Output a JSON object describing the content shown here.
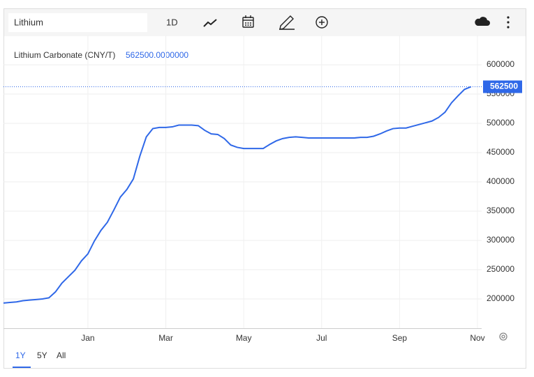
{
  "toolbar": {
    "search": "Lithium",
    "interval": "1D",
    "ranges": [
      "1Y",
      "5Y",
      "All"
    ]
  },
  "chart_data": {
    "type": "line",
    "title": "Lithium Carbonate (CNY/T)",
    "last_value_text": "562500.0000000",
    "categories": [
      null,
      null,
      null,
      null,
      null,
      null,
      null,
      null,
      null,
      null,
      null,
      null,
      null,
      "Jan",
      null,
      null,
      null,
      null,
      null,
      null,
      null,
      null,
      null,
      null,
      null,
      "Mar",
      null,
      null,
      null,
      null,
      null,
      null,
      null,
      null,
      null,
      null,
      null,
      "May",
      null,
      null,
      null,
      null,
      null,
      null,
      null,
      null,
      null,
      null,
      null,
      "Jul",
      null,
      null,
      null,
      null,
      null,
      null,
      null,
      null,
      null,
      null,
      null,
      "Sep",
      null,
      null,
      null,
      null,
      null,
      null,
      null,
      null,
      null,
      null,
      null,
      "Nov"
    ],
    "series": [
      {
        "name": "Lithium Carbonate (CNY/T)",
        "color": "#2f68e8",
        "values": [
          193000,
          194000,
          195000,
          197000,
          198000,
          199000,
          200000,
          202000,
          212000,
          227000,
          238000,
          249000,
          265000,
          277000,
          299000,
          317000,
          331000,
          352000,
          374000,
          387000,
          405000,
          444000,
          477000,
          491000,
          493000,
          493000,
          494000,
          497000,
          497000,
          497000,
          496000,
          488000,
          482000,
          481000,
          474000,
          463000,
          459000,
          457000,
          457000,
          457000,
          457000,
          464000,
          470000,
          474000,
          476000,
          477000,
          476000,
          475000,
          475000,
          475000,
          475000,
          475000,
          475000,
          475000,
          475000,
          476000,
          476000,
          478000,
          482000,
          487000,
          491000,
          492000,
          492000,
          495000,
          498000,
          501000,
          504000,
          510000,
          519000,
          535000,
          547000,
          558000,
          562500,
          null
        ]
      }
    ],
    "ylim": [
      150000,
      650000
    ],
    "yticks": [
      200000,
      250000,
      300000,
      350000,
      400000,
      450000,
      500000,
      550000,
      600000
    ],
    "grid": true
  }
}
